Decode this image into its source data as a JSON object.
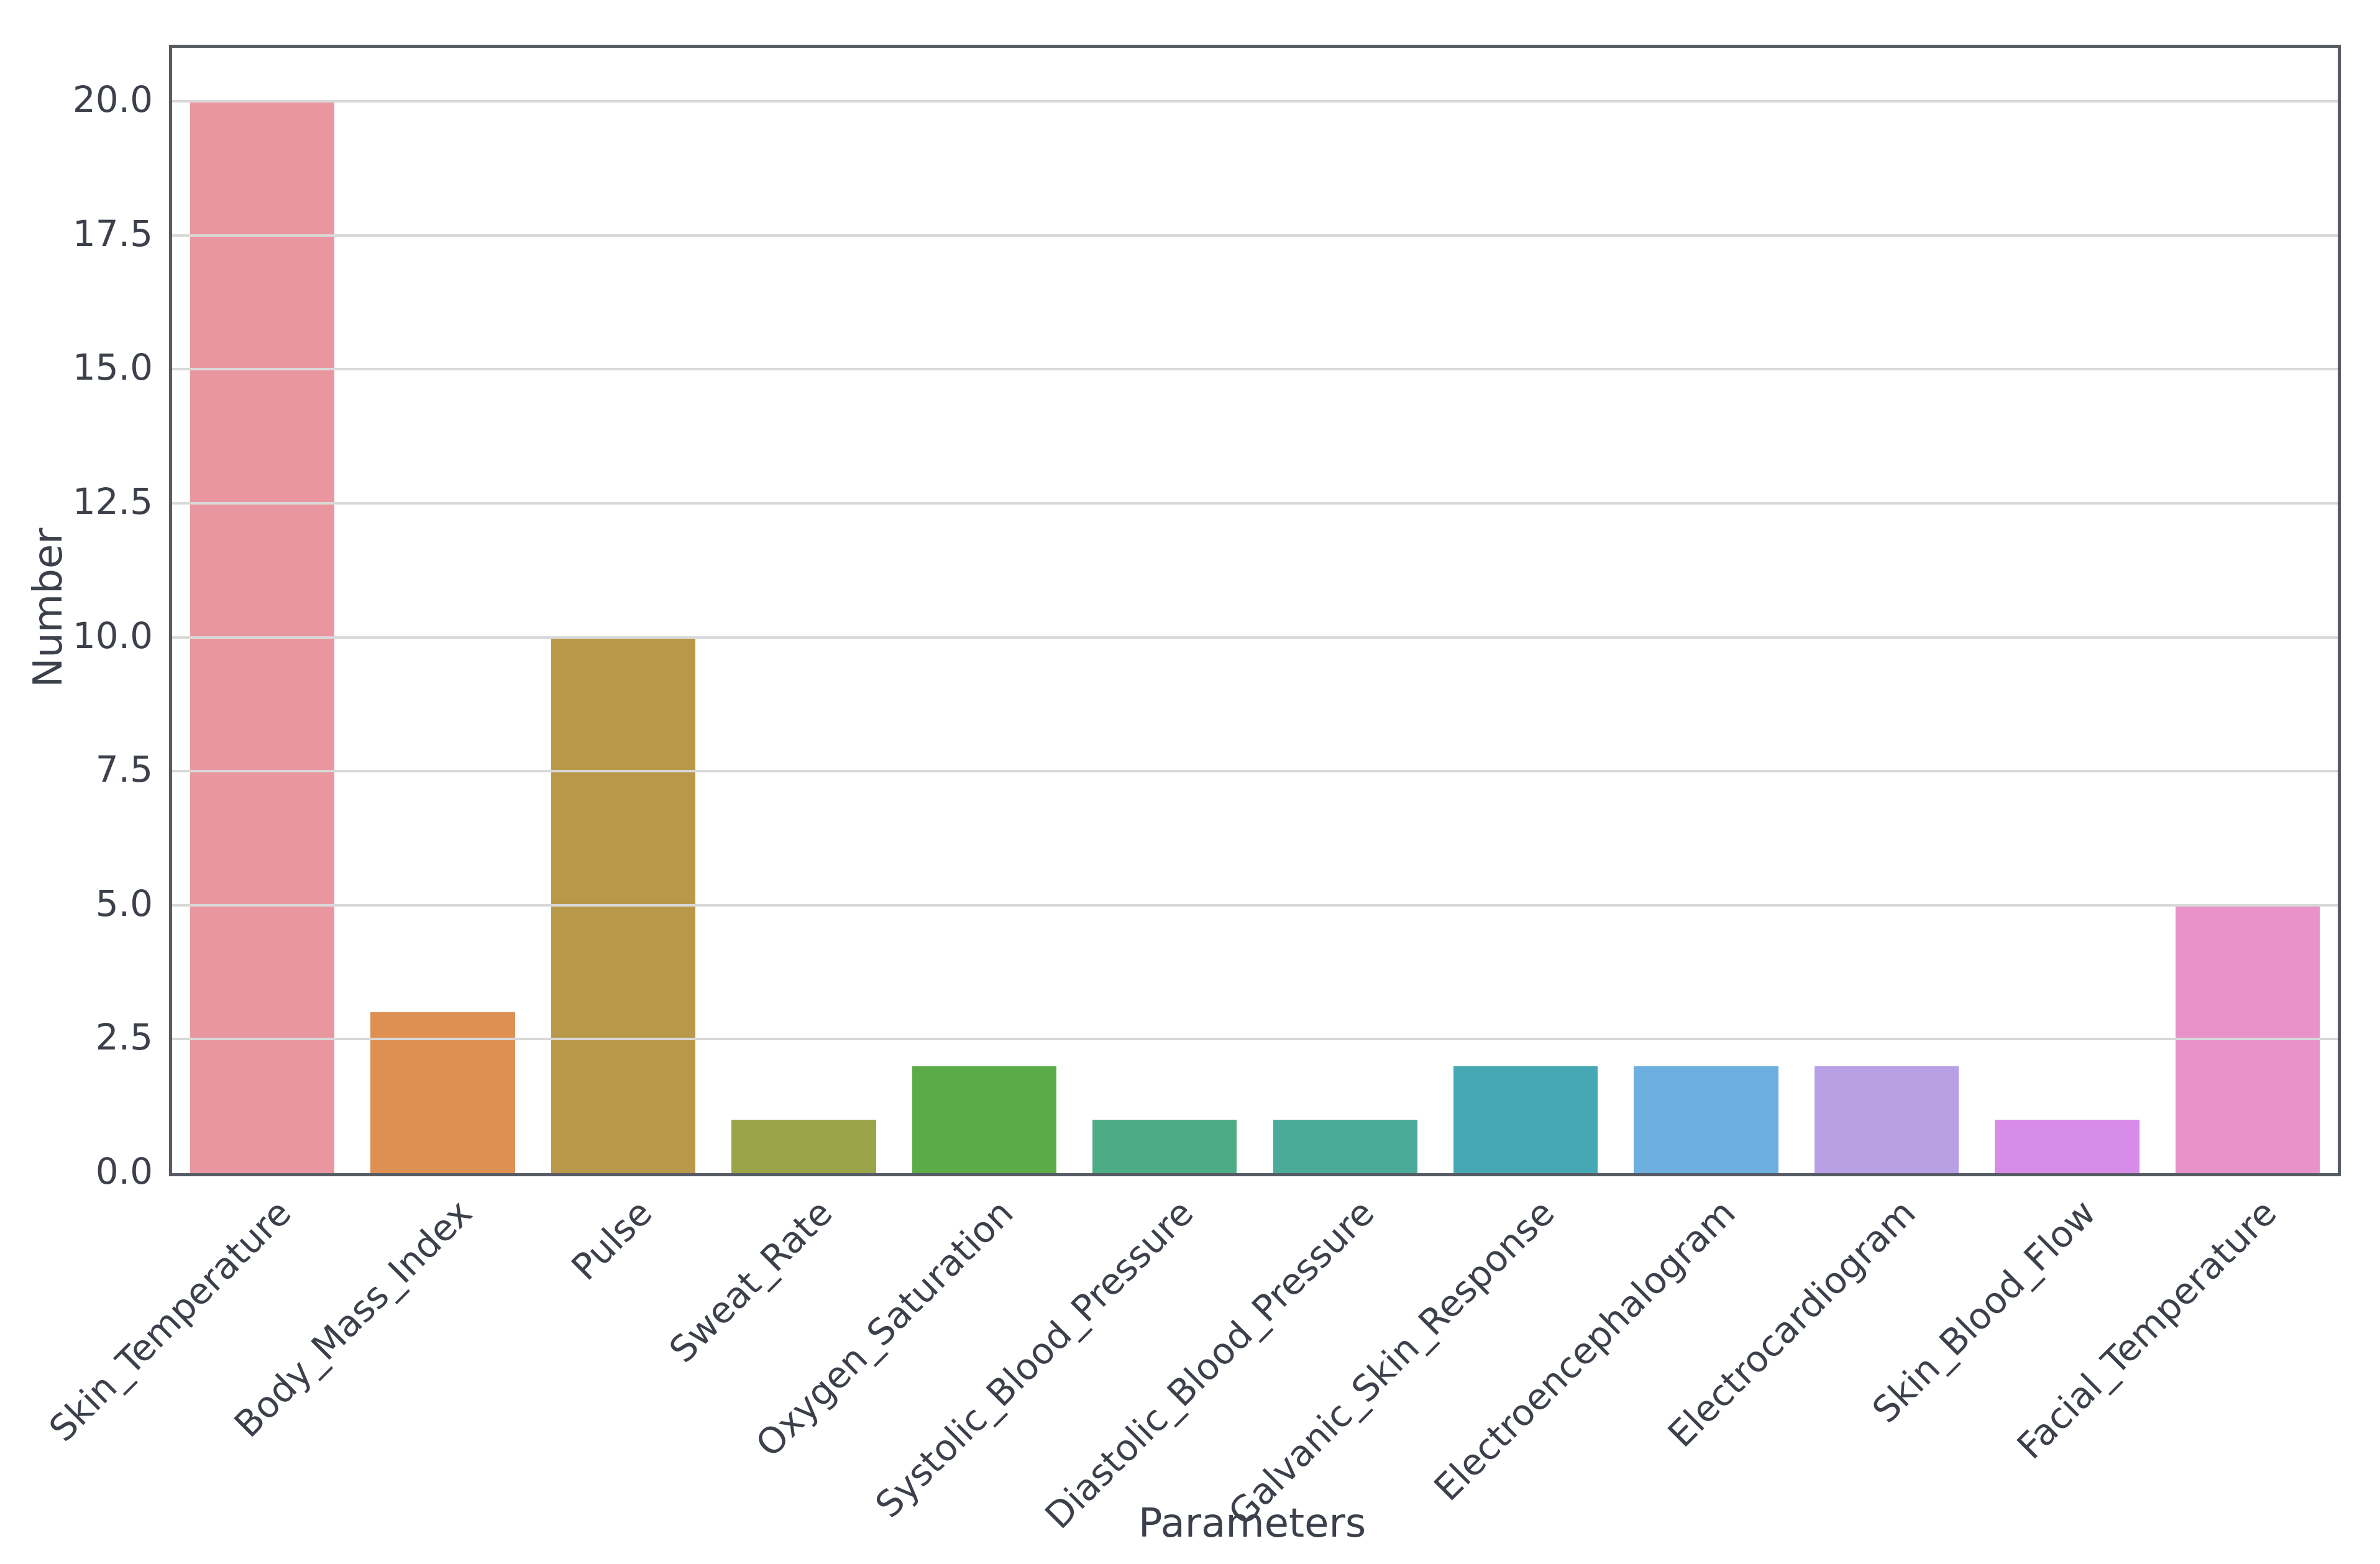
{
  "figure": {
    "background_color": "#ffffff",
    "spine_color": "#565b64",
    "grid_color": "#d8d8d8",
    "text_color": "#3c404b"
  },
  "chart_data": {
    "type": "bar",
    "title": "",
    "xlabel": "Parameters",
    "ylabel": "Number",
    "categories": [
      "Skin_Temperature",
      "Body_Mass_Index",
      "Pulse",
      "Sweat_Rate",
      "Oxygen_Saturation",
      "Systolic_Blood_Pressure",
      "Diastolic_Blood_Pressure",
      "Galvanic_Skin_Response",
      "Electroencephalogram",
      "Electrocardiogram",
      "Skin_Blood_Flow",
      "Facial_Temperature"
    ],
    "values": [
      20,
      3,
      10,
      1,
      2,
      1,
      1,
      2,
      2,
      2,
      1,
      5
    ],
    "bar_colors": [
      "#ea96a0",
      "#de9052",
      "#b89949",
      "#9ba449",
      "#5bac48",
      "#4dac85",
      "#4aab99",
      "#47a8b5",
      "#6dafde",
      "#b8a0e5",
      "#d88ce9",
      "#e991c9"
    ],
    "ytick_labels": [
      "0.0",
      "2.5",
      "5.0",
      "7.5",
      "10.0",
      "12.5",
      "15.0",
      "17.5",
      "20.0"
    ],
    "yticks": [
      0,
      2.5,
      5,
      7.5,
      10,
      12.5,
      15,
      17.5,
      20
    ],
    "ylim": [
      0,
      21
    ],
    "grid": "horizontal, drawn above bars",
    "legend": "none",
    "bar_width_fraction": 0.8,
    "x_tick_rotation_deg": 45
  }
}
